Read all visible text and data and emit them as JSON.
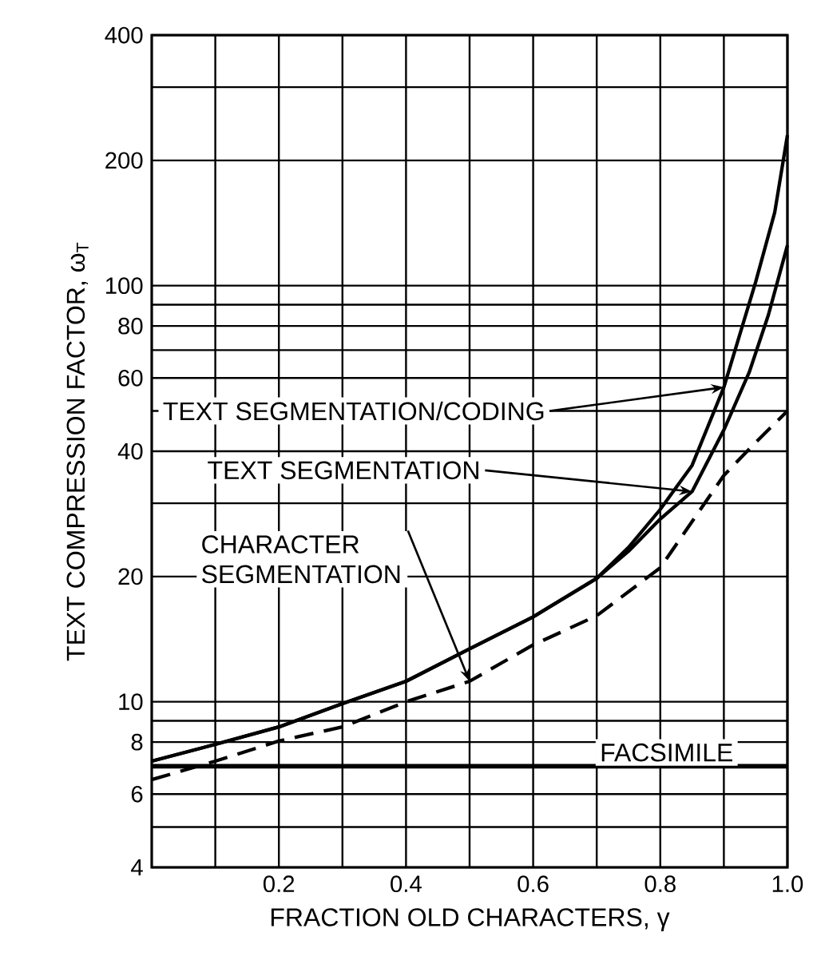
{
  "chart_data": {
    "type": "line",
    "xlabel": "FRACTION OLD CHARACTERS, γ",
    "ylabel": "TEXT COMPRESSION FACTOR, ω$_{T}$",
    "log": "y",
    "grid": true,
    "marker": "none",
    "xlim": [
      0,
      1.0
    ],
    "ylim": [
      4,
      400
    ],
    "xticks": [
      {
        "value": 0.1,
        "label": null
      },
      0.2,
      {
        "value": 0.3,
        "label": null
      },
      0.4,
      {
        "value": 0.5,
        "label": null
      },
      0.6,
      {
        "value": 0.7,
        "label": null
      },
      0.8,
      {
        "value": 0.9,
        "label": null
      },
      {
        "value": 1.0,
        "label": "1.0"
      }
    ],
    "yticks": [
      4,
      {
        "value": 5,
        "label": null
      },
      6,
      {
        "value": 7,
        "label": null
      },
      8,
      {
        "value": 9,
        "label": null
      },
      10,
      20,
      {
        "value": 30,
        "label": null
      },
      40,
      {
        "value": 50,
        "label": null
      },
      60,
      {
        "value": 70,
        "label": null
      },
      80,
      {
        "value": 90,
        "label": null
      },
      100,
      200,
      {
        "value": 300,
        "label": null
      },
      400
    ],
    "series": [
      {
        "color": "#000000",
        "line_style": "solid",
        "x": [
          0,
          0.1,
          0.2,
          0.3,
          0.4,
          0.5,
          0.6,
          0.7,
          0.75,
          0.8,
          0.85,
          0.9,
          0.95,
          0.98,
          1.0
        ],
        "values": [
          7.2,
          7.9,
          8.7,
          9.9,
          11.2,
          13.4,
          16,
          19.8,
          23.5,
          29,
          37,
          57,
          102,
          150,
          230
        ]
      },
      {
        "color": "#000000",
        "line_style": "solid",
        "x": [
          0,
          0.1,
          0.2,
          0.3,
          0.4,
          0.5,
          0.6,
          0.7,
          0.75,
          0.8,
          0.85,
          0.9,
          0.94,
          0.97,
          1.0
        ],
        "values": [
          7.2,
          7.9,
          8.7,
          9.9,
          11.2,
          13.4,
          16,
          19.8,
          23,
          27.5,
          32,
          45,
          62,
          85,
          125
        ]
      },
      {
        "color": "#000000",
        "line_style": "dashed",
        "x": [
          0,
          0.1,
          0.2,
          0.3,
          0.4,
          0.5,
          0.6,
          0.7,
          0.8,
          0.9,
          0.95,
          1.0
        ],
        "values": [
          6.5,
          7.2,
          8.05,
          8.7,
          10,
          11.2,
          13.7,
          16.1,
          21,
          35,
          42,
          50
        ]
      }
    ],
    "ref_lines": [
      {
        "axis": "y",
        "value": 7,
        "label": "FACSIMILE",
        "color": "#000000"
      }
    ],
    "annotations": [
      {
        "text": "TEXT SEGMENTATION/CODING",
        "x": 0.9,
        "y": 57
      },
      {
        "text": "TEXT SEGMENTATION",
        "x": 0.85,
        "y": 32
      },
      {
        "text": "CHARACTER SEGMENTATION",
        "x": 0.5,
        "y": 11.2
      }
    ]
  }
}
